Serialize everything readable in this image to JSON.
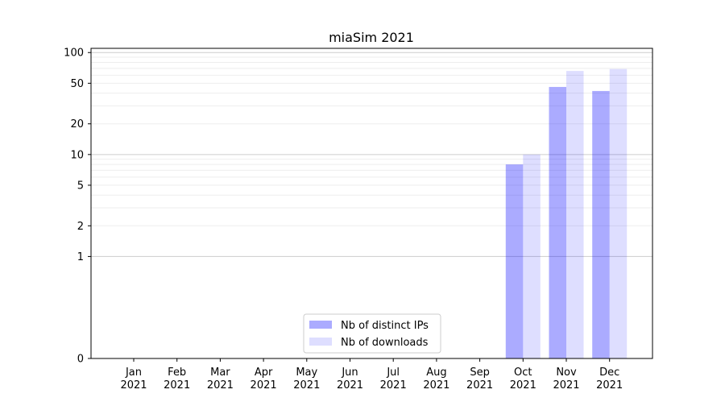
{
  "chart_data": {
    "type": "bar",
    "title": "miaSim 2021",
    "xlabel": "",
    "ylabel": "",
    "categories": [
      [
        "Jan",
        "2021"
      ],
      [
        "Feb",
        "2021"
      ],
      [
        "Mar",
        "2021"
      ],
      [
        "Apr",
        "2021"
      ],
      [
        "May",
        "2021"
      ],
      [
        "Jun",
        "2021"
      ],
      [
        "Jul",
        "2021"
      ],
      [
        "Aug",
        "2021"
      ],
      [
        "Sep",
        "2021"
      ],
      [
        "Oct",
        "2021"
      ],
      [
        "Nov",
        "2021"
      ],
      [
        "Dec",
        "2021"
      ]
    ],
    "series": [
      {
        "name": "Nb of distinct IPs",
        "color": "#0000ff",
        "alpha": 0.33,
        "values": [
          0,
          0,
          0,
          0,
          0,
          0,
          0,
          0,
          0,
          8,
          46,
          42
        ]
      },
      {
        "name": "Nb of downloads",
        "color": "#0000ff",
        "alpha": 0.13,
        "values": [
          0,
          0,
          0,
          0,
          0,
          0,
          0,
          0,
          0,
          10,
          66,
          69
        ]
      }
    ],
    "y_scale": "symlog",
    "ylim": [
      0,
      110
    ],
    "yticks": [
      0,
      1,
      2,
      5,
      10,
      20,
      50,
      100
    ],
    "grid": true,
    "legend_position": "lower center"
  }
}
